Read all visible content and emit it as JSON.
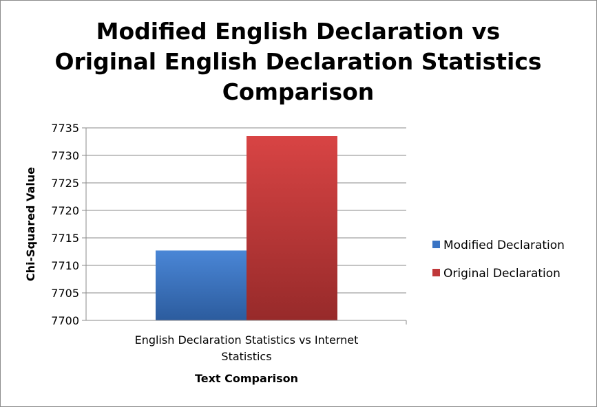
{
  "chart_data": {
    "type": "bar",
    "title_lines": [
      "Modified English Declaration vs",
      "Original English Declaration Statistics",
      "Comparison"
    ],
    "categories": [
      "English Declaration Statistics vs Internet Statistics"
    ],
    "category_lines": [
      "English Declaration Statistics vs Internet",
      "Statistics"
    ],
    "series": [
      {
        "name": "Modified Declaration",
        "values": [
          7712.7
        ],
        "color": "#3a74c4"
      },
      {
        "name": "Original Declaration",
        "values": [
          7733.5
        ],
        "color": "#c0383a"
      }
    ],
    "xlabel": "Text Comparison",
    "ylabel": "Chi-Squared Value",
    "ylim": [
      7700,
      7735
    ],
    "yticks": [
      7700,
      7705,
      7710,
      7715,
      7720,
      7725,
      7730,
      7735
    ],
    "grid": true,
    "legend": "right"
  }
}
